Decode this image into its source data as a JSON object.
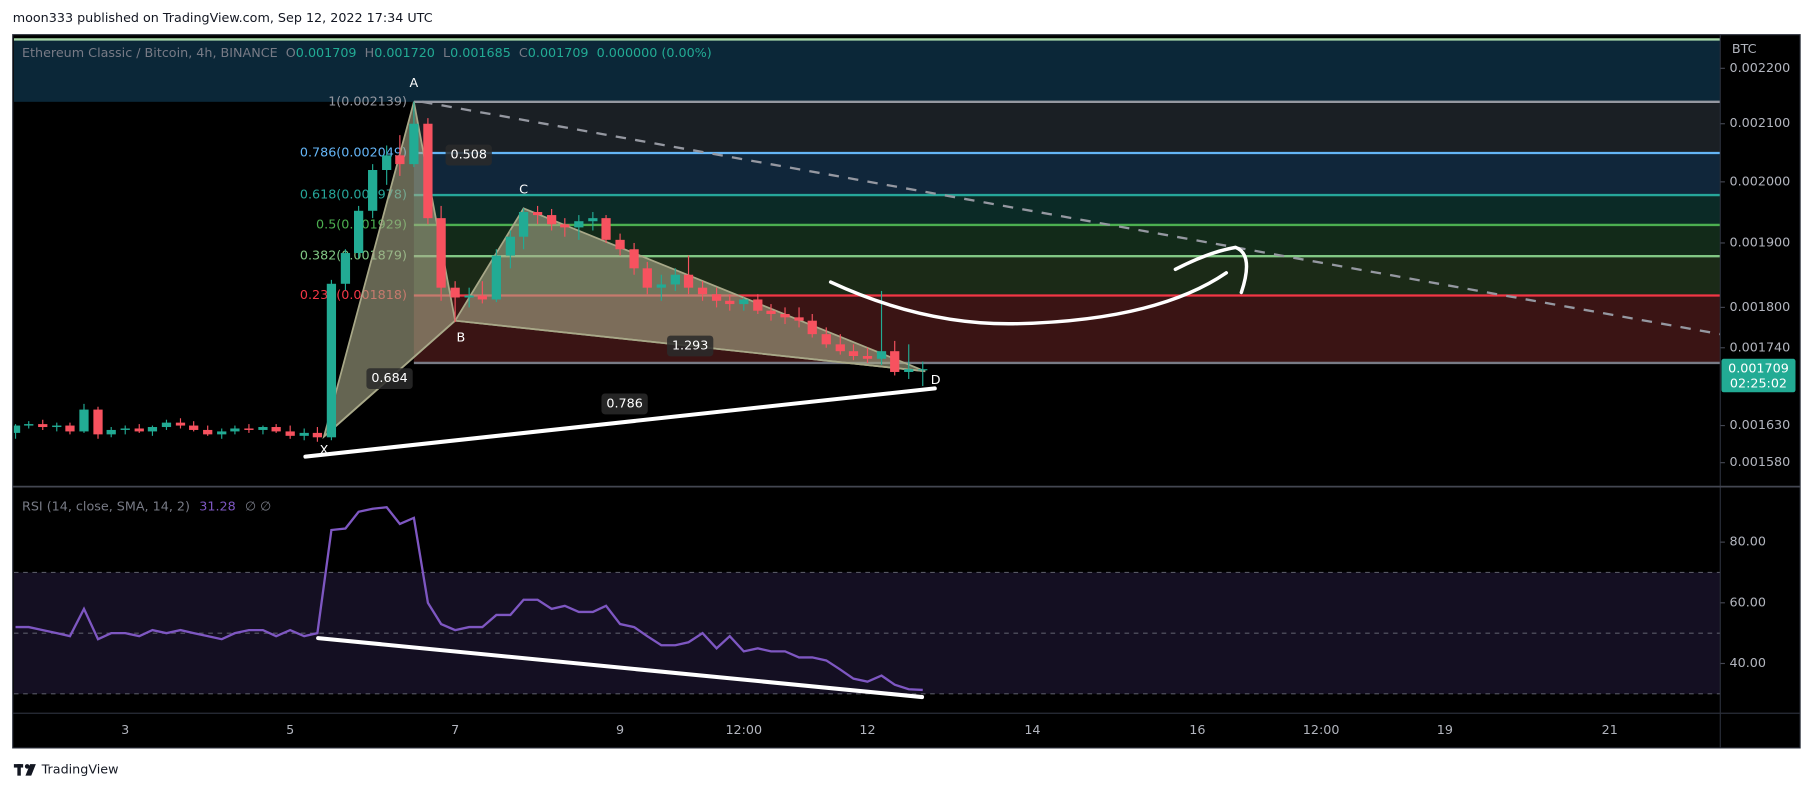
{
  "header": "moon333 published on TradingView.com, Sep 12, 2022 17:34 UTC",
  "footer": "TradingView",
  "chart_data": [
    {
      "type": "candlestick",
      "title": "Ethereum Classic / Bitcoin, 4h, BINANCE",
      "legend_values": [
        {
          "label": "O",
          "value": "0.001709"
        },
        {
          "label": "H",
          "value": "0.001720"
        },
        {
          "label": "L",
          "value": "0.001685"
        },
        {
          "label": "C",
          "value": "0.001709"
        }
      ],
      "change": "0.000000 (0.00%)",
      "currency": "BTC",
      "log_scale": true,
      "up_color": "#22ab94",
      "down_color": "#f7525f",
      "xlim": [
        1.65,
        22.34
      ],
      "xticks": [
        3,
        5,
        7,
        9,
        {
          "value": 10.5,
          "label": "12:00"
        },
        12,
        14,
        16,
        {
          "value": 17.5,
          "label": "12:00"
        },
        19,
        21
      ],
      "ylim": [
        0.00155,
        0.002263
      ],
      "yticks": [
        {
          "value": 0.00158,
          "label": "0.001580"
        },
        {
          "value": 0.00163,
          "label": "0.001630"
        },
        {
          "value": 0.00174,
          "label": "0.001740"
        },
        {
          "value": 0.0018,
          "label": "0.001800"
        },
        {
          "value": 0.0019,
          "label": "0.001900"
        },
        {
          "value": 0.002,
          "label": "0.002000"
        },
        {
          "value": 0.0021,
          "label": "0.002100"
        },
        {
          "value": 0.0022,
          "label": "0.002200"
        }
      ],
      "x": [
        1.67,
        1.83,
        2,
        2.17,
        2.33,
        2.5,
        2.67,
        2.83,
        3,
        3.17,
        3.33,
        3.5,
        3.67,
        3.83,
        4,
        4.17,
        4.33,
        4.5,
        4.67,
        4.83,
        5,
        5.17,
        5.33,
        5.5,
        5.67,
        5.83,
        6,
        6.17,
        6.33,
        6.5,
        6.67,
        6.83,
        7,
        7.17,
        7.33,
        7.5,
        7.67,
        7.83,
        8,
        8.17,
        8.33,
        8.5,
        8.67,
        8.83,
        9,
        9.17,
        9.33,
        9.5,
        9.67,
        9.83,
        10,
        10.17,
        10.33,
        10.5,
        10.67,
        10.83,
        11,
        11.17,
        11.33,
        11.5,
        11.67,
        11.83,
        12,
        12.17,
        12.33,
        12.5,
        12.67
      ],
      "open": [
        0.00162,
        0.00163,
        0.001632,
        0.001628,
        0.00163,
        0.001622,
        0.001652,
        0.001618,
        0.001624,
        0.001626,
        0.001622,
        0.001628,
        0.001634,
        0.00163,
        0.001624,
        0.001618,
        0.001622,
        0.001626,
        0.001624,
        0.001628,
        0.001622,
        0.001616,
        0.00162,
        0.001614,
        0.001836,
        0.001884,
        0.001952,
        0.00202,
        0.002045,
        0.00203,
        0.0021,
        0.00194,
        0.00183,
        0.001815,
        0.001818,
        0.001812,
        0.00188,
        0.00191,
        0.00195,
        0.001945,
        0.00193,
        0.001925,
        0.001935,
        0.00194,
        0.001905,
        0.00189,
        0.00186,
        0.00183,
        0.001835,
        0.00185,
        0.00183,
        0.00182,
        0.00181,
        0.001805,
        0.001812,
        0.001795,
        0.00179,
        0.001785,
        0.00178,
        0.00176,
        0.001745,
        0.001735,
        0.001728,
        0.001724,
        0.001735,
        0.001705,
        0.001709
      ],
      "high": [
        0.001632,
        0.001636,
        0.001638,
        0.001634,
        0.001634,
        0.00166,
        0.001656,
        0.001628,
        0.00163,
        0.001632,
        0.00163,
        0.001638,
        0.00164,
        0.001636,
        0.00163,
        0.001626,
        0.00163,
        0.001632,
        0.00163,
        0.001632,
        0.00163,
        0.001626,
        0.001628,
        0.001842,
        0.00189,
        0.00196,
        0.00203,
        0.002062,
        0.00208,
        0.002139,
        0.00211,
        0.00196,
        0.00184,
        0.00183,
        0.00184,
        0.00189,
        0.00192,
        0.001956,
        0.00196,
        0.001955,
        0.00194,
        0.001945,
        0.00195,
        0.001945,
        0.001915,
        0.0019,
        0.00187,
        0.00185,
        0.00186,
        0.00188,
        0.00184,
        0.00183,
        0.00182,
        0.001815,
        0.00182,
        0.001805,
        0.0018,
        0.0018,
        0.00179,
        0.00177,
        0.00176,
        0.001745,
        0.00174,
        0.001825,
        0.00175,
        0.001745,
        0.00172
      ],
      "low": [
        0.001612,
        0.001626,
        0.001624,
        0.001622,
        0.001618,
        0.00162,
        0.001612,
        0.001614,
        0.001618,
        0.00162,
        0.001616,
        0.001624,
        0.001626,
        0.001622,
        0.001616,
        0.001612,
        0.001618,
        0.00162,
        0.001618,
        0.00162,
        0.001612,
        0.00161,
        0.001608,
        0.00161,
        0.001826,
        0.001876,
        0.00194,
        0.001995,
        0.00201,
        0.002025,
        0.00193,
        0.00181,
        0.001778,
        0.0018,
        0.001806,
        0.001808,
        0.00186,
        0.00189,
        0.00193,
        0.00192,
        0.00191,
        0.001905,
        0.00192,
        0.0019,
        0.00188,
        0.00185,
        0.00182,
        0.00181,
        0.001825,
        0.00182,
        0.00181,
        0.0018,
        0.001795,
        0.001795,
        0.00179,
        0.00178,
        0.001775,
        0.00177,
        0.001755,
        0.00174,
        0.00173,
        0.001722,
        0.001718,
        0.001715,
        0.0017,
        0.001695,
        0.001685
      ],
      "close": [
        0.00163,
        0.001632,
        0.001628,
        0.00163,
        0.001622,
        0.001652,
        0.001618,
        0.001624,
        0.001626,
        0.001622,
        0.001628,
        0.001634,
        0.00163,
        0.001624,
        0.001618,
        0.001622,
        0.001626,
        0.001624,
        0.001628,
        0.001622,
        0.001616,
        0.00162,
        0.001614,
        0.001836,
        0.001884,
        0.001952,
        0.00202,
        0.002045,
        0.00203,
        0.0021,
        0.00194,
        0.00183,
        0.001815,
        0.001818,
        0.001812,
        0.00188,
        0.00191,
        0.00195,
        0.001945,
        0.00193,
        0.001925,
        0.001935,
        0.00194,
        0.001905,
        0.00189,
        0.00186,
        0.00183,
        0.001835,
        0.00185,
        0.00183,
        0.00182,
        0.00181,
        0.001805,
        0.001812,
        0.001795,
        0.00179,
        0.001785,
        0.00178,
        0.00176,
        0.001745,
        0.001735,
        0.001728,
        0.001724,
        0.001735,
        0.001705,
        0.001709,
        0.001709
      ],
      "last_price": {
        "value": 0.001709,
        "label": "0.001709"
      },
      "countdown": "02:25:02",
      "fib_start": 6.5,
      "fib_levels": [
        {
          "value": 0.002254,
          "color": "#a5d6a7",
          "fill": "#0b2738"
        },
        {
          "value": 0.002139,
          "label": "1(0.002139)",
          "color": "#9598a1",
          "fill": "#1a1f24"
        },
        {
          "value": 0.002049,
          "label": "0.786(0.002049)",
          "color": "#64b5f6",
          "fill": "#10263a"
        },
        {
          "value": 0.001978,
          "label": "0.618(0.001978)",
          "color": "#26a69a",
          "fill": "#0b2a26"
        },
        {
          "value": 0.001929,
          "label": "0.5(0.001929)",
          "color": "#4caf50",
          "fill": "#122a19"
        },
        {
          "value": 0.001879,
          "label": "0.382(0.001879)",
          "color": "#81c784",
          "fill": "#1b2a17"
        },
        {
          "value": 0.001818,
          "label": "0.236(0.001818)",
          "color": "#f23645",
          "fill": "#3a1414"
        },
        {
          "value": 0.001718,
          "color": "#787b86"
        }
      ],
      "trendline": {
        "x": [
          6.6,
          22.34
        ],
        "y": [
          0.002139,
          0.00176
        ],
        "color": "#9598a1"
      },
      "pattern": {
        "color": "#a8a888",
        "points": [
          {
            "name": "X",
            "x": 5.41,
            "y": 0.001615
          },
          {
            "name": "A",
            "x": 6.5,
            "y": 0.002139
          },
          {
            "name": "B",
            "x": 7.0,
            "y": 0.00178
          },
          {
            "name": "C",
            "x": 7.83,
            "y": 0.001956
          },
          {
            "name": "D",
            "x": 12.7,
            "y": 0.001706
          }
        ],
        "ratios": [
          0.684,
          0.508,
          1.293,
          0.786
        ]
      }
    },
    {
      "type": "line",
      "title": "RSI (14, close, SMA, 14, 2)",
      "value_label": "31.28",
      "extra": "∅ ∅",
      "color": "#7e57c2",
      "ylim": [
        23.6,
        97.9
      ],
      "yticks": [
        {
          "value": 40,
          "label": "40.00"
        },
        {
          "value": 60,
          "label": "60.00"
        },
        {
          "value": 80,
          "label": "80.00"
        }
      ],
      "band": [
        30,
        70
      ],
      "band_color": "#140f22",
      "reference_lines": [
        70,
        50,
        30
      ],
      "x": [
        1.67,
        1.83,
        2,
        2.17,
        2.33,
        2.5,
        2.67,
        2.83,
        3,
        3.17,
        3.33,
        3.5,
        3.67,
        3.83,
        4,
        4.17,
        4.33,
        4.5,
        4.67,
        4.83,
        5,
        5.17,
        5.33,
        5.5,
        5.67,
        5.83,
        6,
        6.17,
        6.33,
        6.5,
        6.67,
        6.83,
        7,
        7.17,
        7.33,
        7.5,
        7.67,
        7.83,
        8,
        8.17,
        8.33,
        8.5,
        8.67,
        8.83,
        9,
        9.17,
        9.33,
        9.5,
        9.67,
        9.83,
        10,
        10.17,
        10.33,
        10.5,
        10.67,
        10.83,
        11,
        11.17,
        11.33,
        11.5,
        11.67,
        11.83,
        12,
        12.17,
        12.33,
        12.5,
        12.67
      ],
      "values": [
        52,
        52,
        51,
        50,
        49,
        58,
        48,
        50,
        50,
        49,
        51,
        50,
        51,
        50,
        49,
        48,
        50,
        51,
        51,
        49,
        51,
        49,
        50,
        84,
        84.5,
        90,
        91,
        91.5,
        86,
        88,
        60,
        53,
        51,
        52,
        52,
        56,
        56,
        61,
        61,
        58,
        59,
        57,
        57,
        59,
        53,
        52,
        49,
        46,
        46,
        47,
        50,
        45,
        49,
        44,
        45,
        44,
        44,
        42,
        42,
        41,
        38,
        35,
        34,
        36,
        33,
        31.5,
        31.28
      ]
    }
  ]
}
